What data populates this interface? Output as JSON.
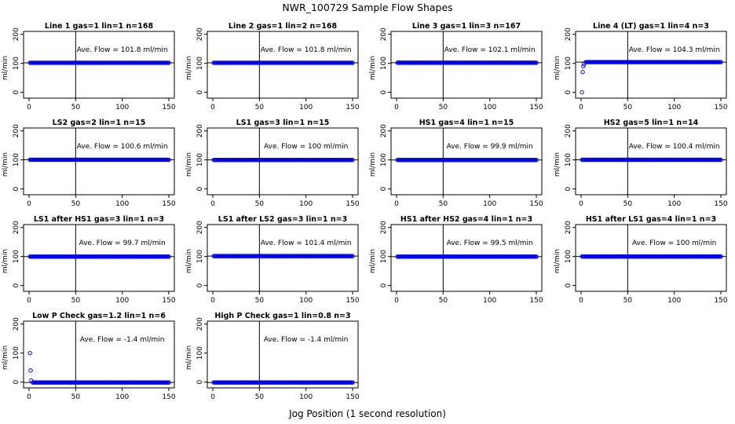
{
  "figure": {
    "title": "NWR_100729  Sample Flow Shapes",
    "xlabel": "Jog Position (1 second resolution)"
  },
  "colors": {
    "points": "#0000ff",
    "axes": "#000000",
    "background": "#ffffff"
  },
  "chart_data": [
    {
      "type": "scatter",
      "title": "Line 1 gas=1 lin=1 n=168",
      "ylabel": "ml/min",
      "annotation": "Ave. Flow =  101.8  ml/min",
      "xlim": [
        0,
        150
      ],
      "ylim": [
        -20,
        210
      ],
      "xticks": [
        0,
        50,
        100,
        150
      ],
      "xtick_labels": [
        "0",
        "50",
        "100",
        "150"
      ],
      "yticks": [
        0,
        100,
        200
      ],
      "ytick_labels": [
        "0",
        "100",
        "200"
      ],
      "vline_x": 50,
      "hline_y": 101.8,
      "series": [
        {
          "x_range": [
            1,
            150
          ],
          "y": [
            101.8
          ],
          "start_y": []
        }
      ]
    },
    {
      "type": "scatter",
      "title": "Line 2 gas=1 lin=2 n=168",
      "ylabel": "ml/min",
      "annotation": "Ave. Flow =  101.8  ml/min",
      "xlim": [
        0,
        150
      ],
      "ylim": [
        -20,
        210
      ],
      "xticks": [
        0,
        50,
        100,
        150
      ],
      "xtick_labels": [
        "0",
        "50",
        "100",
        "150"
      ],
      "yticks": [
        0,
        100,
        200
      ],
      "ytick_labels": [
        "0",
        "100",
        "200"
      ],
      "vline_x": 50,
      "hline_y": 101.8,
      "series": [
        {
          "x_range": [
            1,
            150
          ],
          "y": [
            101.8
          ],
          "start_y": []
        }
      ]
    },
    {
      "type": "scatter",
      "title": "Line 3 gas=1 lin=3 n=167",
      "ylabel": "ml/min",
      "annotation": "Ave. Flow =  102.1  ml/min",
      "xlim": [
        0,
        150
      ],
      "ylim": [
        -20,
        210
      ],
      "xticks": [
        0,
        50,
        100,
        150
      ],
      "xtick_labels": [
        "0",
        "50",
        "100",
        "150"
      ],
      "yticks": [
        0,
        100,
        200
      ],
      "ytick_labels": [
        "0",
        "100",
        "200"
      ],
      "vline_x": 50,
      "hline_y": 102.1,
      "series": [
        {
          "x_range": [
            1,
            150
          ],
          "y": [
            102.1
          ],
          "start_y": []
        }
      ]
    },
    {
      "type": "scatter",
      "title": "Line 4 (LT) gas=1 lin=4 n=3",
      "ylabel": "ml/min",
      "annotation": "Ave. Flow =  104.3  ml/min",
      "xlim": [
        0,
        150
      ],
      "ylim": [
        -20,
        210
      ],
      "xticks": [
        0,
        50,
        100,
        150
      ],
      "xtick_labels": [
        "0",
        "50",
        "100",
        "150"
      ],
      "yticks": [
        0,
        100,
        200
      ],
      "ytick_labels": [
        "0",
        "100",
        "200"
      ],
      "vline_x": 50,
      "hline_y": 104.3,
      "series": [
        {
          "x_range": [
            1,
            150
          ],
          "y": [
            104.3
          ],
          "start_y": [
            0,
            70,
            90,
            97
          ]
        }
      ]
    },
    {
      "type": "scatter",
      "title": "LS2 gas=2 lin=1 n=15",
      "ylabel": "ml/min",
      "annotation": "Ave. Flow =  100.6  ml/min",
      "xlim": [
        0,
        150
      ],
      "ylim": [
        -20,
        210
      ],
      "xticks": [
        0,
        50,
        100,
        150
      ],
      "xtick_labels": [
        "0",
        "50",
        "100",
        "150"
      ],
      "yticks": [
        0,
        100,
        200
      ],
      "ytick_labels": [
        "0",
        "100",
        "200"
      ],
      "vline_x": 50,
      "hline_y": 100.6,
      "series": [
        {
          "x_range": [
            1,
            150
          ],
          "y": [
            100.6
          ],
          "start_y": []
        }
      ]
    },
    {
      "type": "scatter",
      "title": "LS1 gas=3 lin=1 n=15",
      "ylabel": "ml/min",
      "annotation": "Ave. Flow =  100  ml/min",
      "xlim": [
        0,
        150
      ],
      "ylim": [
        -20,
        210
      ],
      "xticks": [
        0,
        50,
        100,
        150
      ],
      "xtick_labels": [
        "0",
        "50",
        "100",
        "150"
      ],
      "yticks": [
        0,
        100,
        200
      ],
      "ytick_labels": [
        "0",
        "100",
        "200"
      ],
      "vline_x": 50,
      "hline_y": 100,
      "series": [
        {
          "x_range": [
            1,
            150
          ],
          "y": [
            100
          ],
          "start_y": []
        }
      ]
    },
    {
      "type": "scatter",
      "title": "HS1 gas=4 lin=1 n=15",
      "ylabel": "ml/min",
      "annotation": "Ave. Flow =  99.9  ml/min",
      "xlim": [
        0,
        150
      ],
      "ylim": [
        -20,
        210
      ],
      "xticks": [
        0,
        50,
        100,
        150
      ],
      "xtick_labels": [
        "0",
        "50",
        "100",
        "150"
      ],
      "yticks": [
        0,
        100,
        200
      ],
      "ytick_labels": [
        "0",
        "100",
        "200"
      ],
      "vline_x": 50,
      "hline_y": 99.9,
      "series": [
        {
          "x_range": [
            1,
            150
          ],
          "y": [
            99.9
          ],
          "start_y": []
        }
      ]
    },
    {
      "type": "scatter",
      "title": "HS2 gas=5 lin=1 n=14",
      "ylabel": "ml/min",
      "annotation": "Ave. Flow =  100.4  ml/min",
      "xlim": [
        0,
        150
      ],
      "ylim": [
        -20,
        210
      ],
      "xticks": [
        0,
        50,
        100,
        150
      ],
      "xtick_labels": [
        "0",
        "50",
        "100",
        "150"
      ],
      "yticks": [
        0,
        100,
        200
      ],
      "ytick_labels": [
        "0",
        "100",
        "200"
      ],
      "vline_x": 50,
      "hline_y": 100.4,
      "series": [
        {
          "x_range": [
            1,
            150
          ],
          "y": [
            100.4
          ],
          "start_y": []
        }
      ]
    },
    {
      "type": "scatter",
      "title": "LS1 after HS1 gas=3 lin=1 n=3",
      "ylabel": "ml/min",
      "annotation": "Ave. Flow =  99.7  ml/min",
      "xlim": [
        0,
        150
      ],
      "ylim": [
        -20,
        210
      ],
      "xticks": [
        0,
        50,
        100,
        150
      ],
      "xtick_labels": [
        "0",
        "50",
        "100",
        "150"
      ],
      "yticks": [
        0,
        100,
        200
      ],
      "ytick_labels": [
        "0",
        "100",
        "200"
      ],
      "vline_x": 50,
      "hline_y": 99.7,
      "series": [
        {
          "x_range": [
            1,
            150
          ],
          "y": [
            99.7
          ],
          "start_y": []
        }
      ]
    },
    {
      "type": "scatter",
      "title": "LS1 after LS2 gas=3 lin=1 n=3",
      "ylabel": "ml/min",
      "annotation": "Ave. Flow =  101.4  ml/min",
      "xlim": [
        0,
        150
      ],
      "ylim": [
        -20,
        210
      ],
      "xticks": [
        0,
        50,
        100,
        150
      ],
      "xtick_labels": [
        "0",
        "50",
        "100",
        "150"
      ],
      "yticks": [
        0,
        100,
        200
      ],
      "ytick_labels": [
        "0",
        "100",
        "200"
      ],
      "vline_x": 50,
      "hline_y": 101.4,
      "series": [
        {
          "x_range": [
            1,
            150
          ],
          "y": [
            101.4
          ],
          "start_y": []
        }
      ]
    },
    {
      "type": "scatter",
      "title": "HS1 after HS2 gas=4 lin=1 n=3",
      "ylabel": "ml/min",
      "annotation": "Ave. Flow =  99.5  ml/min",
      "xlim": [
        0,
        150
      ],
      "ylim": [
        -20,
        210
      ],
      "xticks": [
        0,
        50,
        100,
        150
      ],
      "xtick_labels": [
        "0",
        "50",
        "100",
        "150"
      ],
      "yticks": [
        0,
        100,
        200
      ],
      "ytick_labels": [
        "0",
        "100",
        "200"
      ],
      "vline_x": 50,
      "hline_y": 99.5,
      "series": [
        {
          "x_range": [
            1,
            150
          ],
          "y": [
            99.5
          ],
          "start_y": []
        }
      ]
    },
    {
      "type": "scatter",
      "title": "HS1 after LS1 gas=4 lin=1 n=3",
      "ylabel": "ml/min",
      "annotation": "Ave. Flow =  100  ml/min",
      "xlim": [
        0,
        150
      ],
      "ylim": [
        -20,
        210
      ],
      "xticks": [
        0,
        50,
        100,
        150
      ],
      "xtick_labels": [
        "0",
        "50",
        "100",
        "150"
      ],
      "yticks": [
        0,
        100,
        200
      ],
      "ytick_labels": [
        "0",
        "100",
        "200"
      ],
      "vline_x": 50,
      "hline_y": 100,
      "series": [
        {
          "x_range": [
            1,
            150
          ],
          "y": [
            100
          ],
          "start_y": []
        }
      ]
    },
    {
      "type": "scatter",
      "title": "Low P Check gas=1.2 lin=1 n=6",
      "ylabel": "ml/min",
      "annotation": "Ave. Flow =  -1.4  ml/min",
      "xlim": [
        0,
        150
      ],
      "ylim": [
        -20,
        210
      ],
      "xticks": [
        0,
        50,
        100,
        150
      ],
      "xtick_labels": [
        "0",
        "50",
        "100",
        "150"
      ],
      "yticks": [
        0,
        100,
        200
      ],
      "ytick_labels": [
        "0",
        "100",
        "200"
      ],
      "vline_x": 50,
      "hline_y": -1.4,
      "series": [
        {
          "x_range": [
            1,
            150
          ],
          "y": [
            -1.4
          ],
          "start_y": [
            100,
            40,
            5
          ]
        }
      ]
    },
    {
      "type": "scatter",
      "title": "High P Check gas=1 lin=0.8 n=3",
      "ylabel": "ml/min",
      "annotation": "Ave. Flow =  -1.4  ml/min",
      "xlim": [
        0,
        150
      ],
      "ylim": [
        -20,
        210
      ],
      "xticks": [
        0,
        50,
        100,
        150
      ],
      "xtick_labels": [
        "0",
        "50",
        "100",
        "150"
      ],
      "yticks": [
        0,
        100,
        200
      ],
      "ytick_labels": [
        "0",
        "100",
        "200"
      ],
      "vline_x": 50,
      "hline_y": -1.4,
      "series": [
        {
          "x_range": [
            1,
            150
          ],
          "y": [
            -1.4
          ],
          "start_y": []
        }
      ]
    }
  ]
}
